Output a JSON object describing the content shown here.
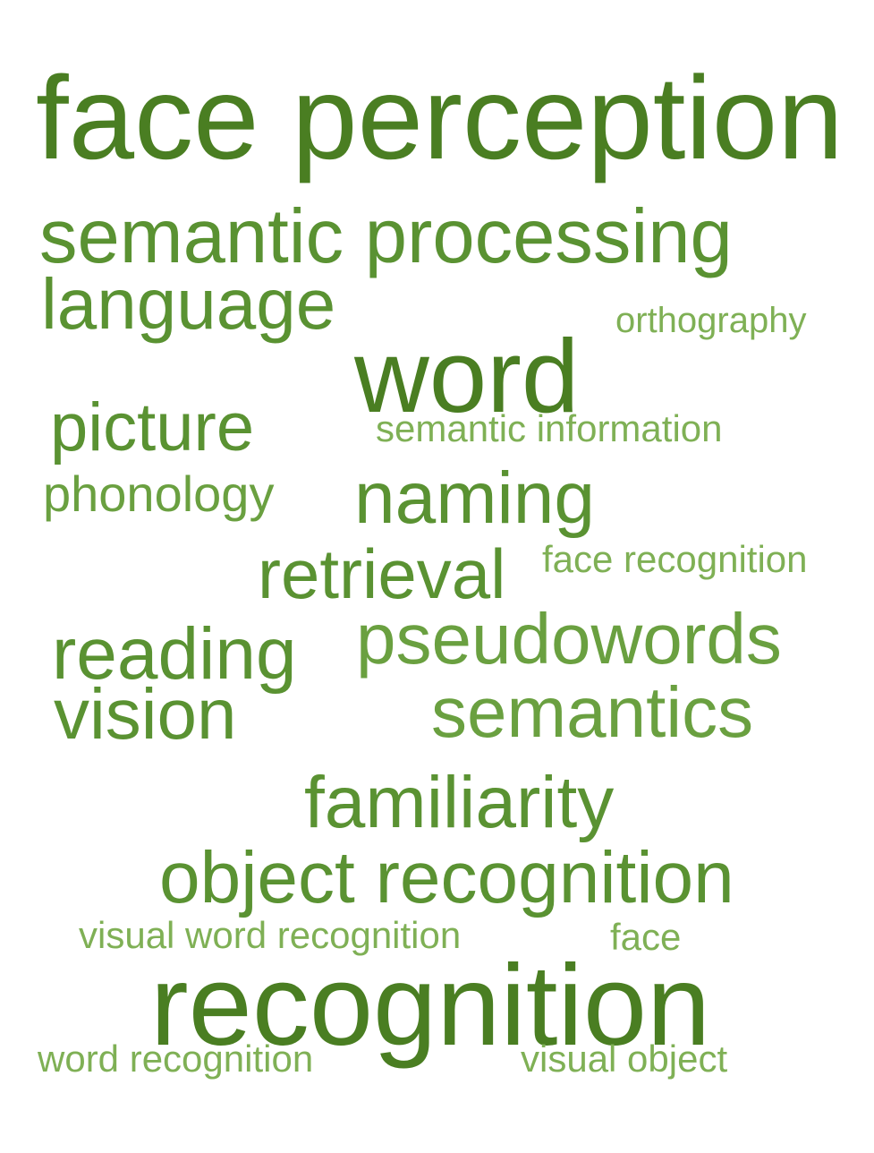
{
  "words": {
    "face_perception": "face perception",
    "semantic_processing": "semantic processing",
    "language": "language",
    "orthography": "orthography",
    "word": "word",
    "picture": "picture",
    "semantic_information": "semantic information",
    "phonology": "phonology",
    "naming": "naming",
    "retrieval": "retrieval",
    "face_recognition": "face recognition",
    "reading": "reading",
    "pseudowords": "pseudowords",
    "vision": "vision",
    "semantics": "semantics",
    "familiarity": "familiarity",
    "object_recognition": "object recognition",
    "visual_word_recognition": "visual word recognition",
    "face": "face",
    "recognition": "recognition",
    "word_recognition": "word recognition",
    "visual_object": "visual object"
  },
  "colors": {
    "darkest": "#4a7e22",
    "dark": "#5a9232",
    "medium": "#6aa040",
    "light": "#7fb055",
    "background": "#ffffff"
  }
}
